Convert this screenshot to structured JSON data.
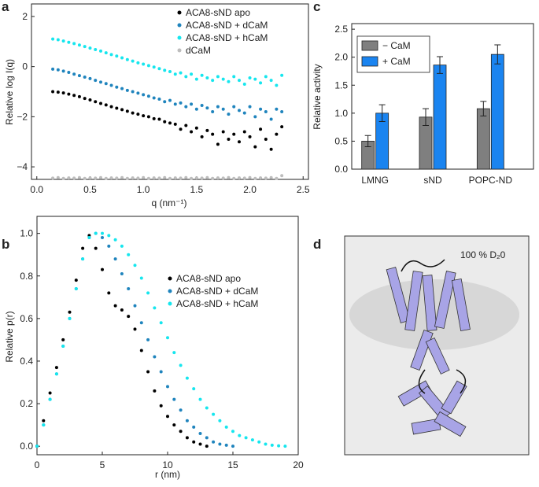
{
  "chart_data": [
    {
      "type": "scatter",
      "panel": "a",
      "x_label": "q (nm⁻¹)",
      "y_label": "Relative log I(q)",
      "x": [
        0.15,
        0.2,
        0.25,
        0.3,
        0.35,
        0.4,
        0.45,
        0.5,
        0.55,
        0.6,
        0.65,
        0.7,
        0.75,
        0.8,
        0.85,
        0.9,
        0.95,
        1.0,
        1.05,
        1.1,
        1.15,
        1.2,
        1.25,
        1.3,
        1.35,
        1.4,
        1.45,
        1.5,
        1.55,
        1.6,
        1.65,
        1.7,
        1.75,
        1.8,
        1.85,
        1.9,
        1.95,
        2.0,
        2.05,
        2.1,
        2.15,
        2.2,
        2.25,
        2.3
      ],
      "series": [
        {
          "name": "ACA8-sND apo",
          "color": "#000000",
          "values": [
            -1.0,
            -1.02,
            -1.05,
            -1.1,
            -1.15,
            -1.2,
            -1.27,
            -1.33,
            -1.4,
            -1.47,
            -1.53,
            -1.6,
            -1.66,
            -1.72,
            -1.78,
            -1.85,
            -1.9,
            -1.96,
            -2.0,
            -2.08,
            -2.1,
            -2.2,
            -2.25,
            -2.3,
            -2.5,
            -2.35,
            -2.6,
            -2.45,
            -2.8,
            -2.55,
            -2.7,
            -3.1,
            -2.6,
            -2.9,
            -2.7,
            -3.0,
            -2.6,
            -2.8,
            -3.2,
            -2.5,
            -2.9,
            -3.3,
            -2.7,
            -2.4
          ]
        },
        {
          "name": "ACA8-sND + dCaM",
          "color": "#1f84bd",
          "values": [
            -0.1,
            -0.13,
            -0.18,
            -0.23,
            -0.3,
            -0.36,
            -0.42,
            -0.48,
            -0.55,
            -0.62,
            -0.68,
            -0.75,
            -0.82,
            -0.88,
            -0.95,
            -1.0,
            -1.06,
            -1.12,
            -1.18,
            -1.25,
            -1.3,
            -1.4,
            -1.35,
            -1.5,
            -1.45,
            -1.6,
            -1.5,
            -1.7,
            -1.55,
            -1.65,
            -1.8,
            -1.6,
            -1.7,
            -1.9,
            -1.6,
            -1.75,
            -1.85,
            -1.6,
            -2.0,
            -1.7,
            -1.8,
            -2.1,
            -1.7,
            -1.8
          ]
        },
        {
          "name": "ACA8-sND + hCaM",
          "color": "#16e6ee",
          "values": [
            1.1,
            1.07,
            1.02,
            0.97,
            0.92,
            0.86,
            0.8,
            0.74,
            0.68,
            0.62,
            0.55,
            0.48,
            0.42,
            0.35,
            0.28,
            0.22,
            0.15,
            0.1,
            0.04,
            -0.02,
            -0.08,
            -0.15,
            -0.2,
            -0.3,
            -0.25,
            -0.4,
            -0.3,
            -0.5,
            -0.35,
            -0.45,
            -0.55,
            -0.4,
            -0.5,
            -0.6,
            -0.4,
            -0.55,
            -0.7,
            -0.45,
            -0.5,
            -0.65,
            -0.4,
            -0.55,
            -0.75,
            -0.35
          ]
        },
        {
          "name": "dCaM",
          "color": "#bdbdbd",
          "values": [
            -4.45,
            -4.43,
            -4.46,
            -4.44,
            -4.45,
            -4.43,
            -4.46,
            -4.44,
            -4.45,
            -4.43,
            -4.46,
            -4.44,
            -4.45,
            -4.43,
            -4.46,
            -4.44,
            -4.45,
            -4.43,
            -4.46,
            -4.44,
            -4.45,
            -4.43,
            -4.46,
            -4.44,
            -4.45,
            -4.43,
            -4.46,
            -4.44,
            -4.45,
            -4.43,
            -4.46,
            -4.44,
            -4.45,
            -4.43,
            -4.46,
            -4.44,
            -4.45,
            -4.43,
            -4.46,
            -4.44,
            -4.45,
            -4.43,
            -4.46,
            -4.35
          ]
        }
      ],
      "xlim": [
        -0.05,
        2.55
      ],
      "ylim": [
        -4.5,
        2.5
      ],
      "xticks": [
        {
          "value": 0,
          "label": "0.0"
        },
        0.5,
        {
          "value": 1,
          "label": "1.0"
        },
        1.5,
        {
          "value": 2,
          "label": "2.0"
        },
        2.5
      ],
      "yticks": [
        {
          "value": -4,
          "label": "−4"
        },
        {
          "value": -2,
          "label": "−2"
        },
        0,
        2
      ]
    },
    {
      "type": "scatter",
      "panel": "b",
      "x_label": "r (nm)",
      "y_label": "Relative p(r)",
      "x": [
        0,
        0.5,
        1,
        1.5,
        2,
        2.5,
        3,
        3.5,
        4,
        4.5,
        5,
        5.5,
        6,
        6.5,
        7,
        7.5,
        8,
        8.5,
        9,
        9.5,
        10,
        10.5,
        11,
        11.5,
        12,
        12.5,
        13,
        13.5,
        14,
        14.5,
        15,
        15.5,
        16,
        16.5,
        17,
        17.5,
        18,
        18.5,
        19
      ],
      "series": [
        {
          "name": "ACA8-sND apo",
          "color": "#000000",
          "values": [
            0,
            0.12,
            0.25,
            0.37,
            0.5,
            0.63,
            0.78,
            0.93,
            0.99,
            0.93,
            0.83,
            0.72,
            0.66,
            0.64,
            0.61,
            0.55,
            0.45,
            0.35,
            0.26,
            0.19,
            0.14,
            0.1,
            0.07,
            0.04,
            0.02,
            0.01,
            0,
            null,
            null,
            null,
            null,
            null,
            null,
            null,
            null,
            null,
            null,
            null,
            null
          ]
        },
        {
          "name": "ACA8-sND + dCaM",
          "color": "#1f84bd",
          "values": [
            0,
            0.1,
            0.22,
            0.34,
            0.47,
            0.6,
            0.74,
            0.88,
            0.98,
            1.0,
            0.98,
            0.94,
            0.88,
            0.81,
            0.74,
            0.66,
            0.58,
            0.5,
            0.42,
            0.35,
            0.28,
            0.22,
            0.17,
            0.12,
            0.09,
            0.06,
            0.04,
            0.02,
            0.01,
            0.005,
            0,
            null,
            null,
            null,
            null,
            null,
            null,
            null,
            null
          ]
        },
        {
          "name": "ACA8-sND + hCaM",
          "color": "#16e6ee",
          "values": [
            0,
            0.1,
            0.22,
            0.34,
            0.47,
            0.6,
            0.74,
            0.88,
            0.98,
            1.0,
            1.0,
            0.99,
            0.97,
            0.94,
            0.9,
            0.85,
            0.79,
            0.72,
            0.65,
            0.58,
            0.51,
            0.44,
            0.38,
            0.32,
            0.27,
            0.22,
            0.18,
            0.15,
            0.12,
            0.09,
            0.07,
            0.05,
            0.04,
            0.03,
            0.02,
            0.01,
            0.005,
            0.002,
            0
          ]
        }
      ],
      "xlim": [
        0,
        20
      ],
      "ylim": [
        -0.04,
        1.08
      ],
      "xticks": [
        0,
        5,
        10,
        15,
        20
      ],
      "yticks": [
        {
          "value": 0,
          "label": "0.0"
        },
        0.2,
        0.4,
        0.6,
        0.8,
        {
          "value": 1,
          "label": "1.0"
        }
      ]
    },
    {
      "type": "bar",
      "panel": "c",
      "y_label": "Relative activity",
      "categories": [
        "LMNG",
        "sND",
        "POPC-ND"
      ],
      "series": [
        {
          "name": "− CaM",
          "color": "#7f7f7f",
          "values": [
            0.5,
            0.93,
            1.08
          ],
          "errors": [
            0.1,
            0.15,
            0.13
          ]
        },
        {
          "name": "+ CaM",
          "color": "#1a84f0",
          "values": [
            1.0,
            1.86,
            2.05
          ],
          "errors": [
            0.15,
            0.15,
            0.17
          ]
        }
      ],
      "ylim": [
        0,
        2.6
      ],
      "yticks": [
        {
          "value": 0,
          "label": "0.0"
        },
        0.5,
        {
          "value": 1,
          "label": "1.0"
        },
        1.5,
        {
          "value": 2,
          "label": "2.0"
        },
        2.5
      ]
    }
  ],
  "image_panel": {
    "panel": "d",
    "label": "100 % D₂0"
  }
}
